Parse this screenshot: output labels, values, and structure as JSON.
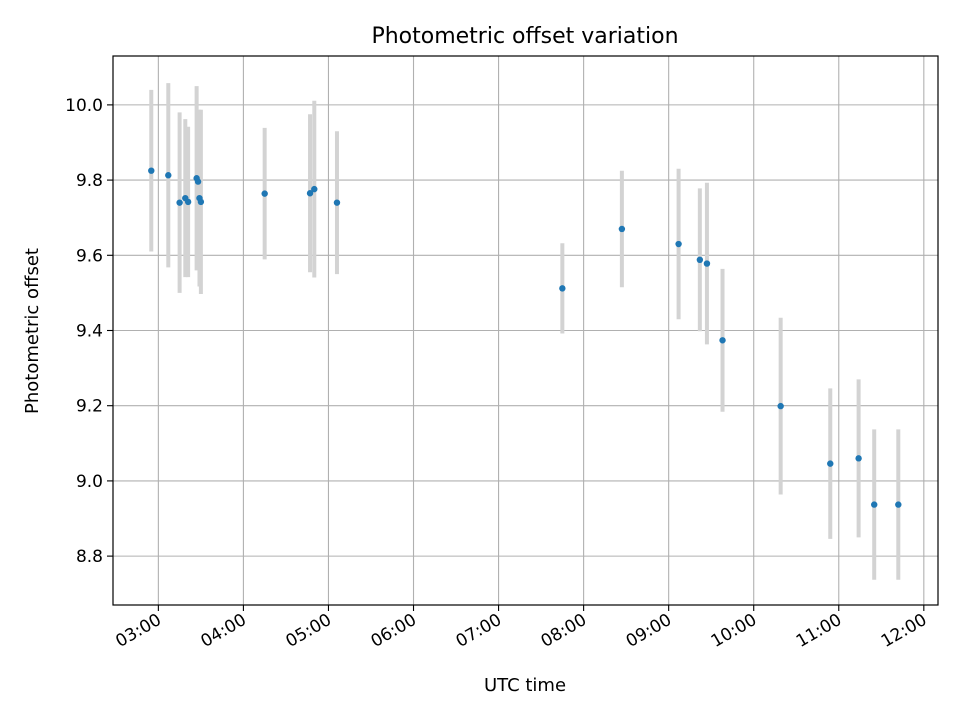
{
  "chart_data": {
    "type": "scatter",
    "title": "Photometric offset variation",
    "xlabel": "UTC time",
    "ylabel": "Photometric offset",
    "x_unit": "hours UTC",
    "xlim": [
      "02:28",
      "12:10"
    ],
    "ylim": [
      8.67,
      10.13
    ],
    "x_ticks": [
      "03:00",
      "04:00",
      "05:00",
      "06:00",
      "07:00",
      "08:00",
      "09:00",
      "10:00",
      "11:00",
      "12:00"
    ],
    "y_ticks": [
      "8.8",
      "9.0",
      "9.2",
      "9.4",
      "9.6",
      "9.8",
      "10.0"
    ],
    "grid": true,
    "marker_color": "#1f77b4",
    "errorbar_color": "#d3d3d3",
    "points": [
      {
        "x": "02:55",
        "y": 9.825,
        "err": 0.215
      },
      {
        "x": "03:07",
        "y": 9.813,
        "err": 0.245
      },
      {
        "x": "03:15",
        "y": 9.74,
        "err": 0.24
      },
      {
        "x": "03:19",
        "y": 9.752,
        "err": 0.21
      },
      {
        "x": "03:21",
        "y": 9.742,
        "err": 0.2
      },
      {
        "x": "03:27",
        "y": 9.805,
        "err": 0.245
      },
      {
        "x": "03:28",
        "y": 9.796,
        "err": 0.19
      },
      {
        "x": "03:29",
        "y": 9.752,
        "err": 0.235
      },
      {
        "x": "03:30",
        "y": 9.742,
        "err": 0.245
      },
      {
        "x": "04:15",
        "y": 9.764,
        "err": 0.175
      },
      {
        "x": "04:47",
        "y": 9.765,
        "err": 0.21
      },
      {
        "x": "04:50",
        "y": 9.776,
        "err": 0.235
      },
      {
        "x": "05:06",
        "y": 9.74,
        "err": 0.19
      },
      {
        "x": "07:45",
        "y": 9.512,
        "err": 0.12
      },
      {
        "x": "08:27",
        "y": 9.67,
        "err": 0.155
      },
      {
        "x": "09:07",
        "y": 9.63,
        "err": 0.2
      },
      {
        "x": "09:22",
        "y": 9.588,
        "err": 0.19
      },
      {
        "x": "09:27",
        "y": 9.578,
        "err": 0.215
      },
      {
        "x": "09:38",
        "y": 9.374,
        "err": 0.19
      },
      {
        "x": "10:19",
        "y": 9.199,
        "err": 0.235
      },
      {
        "x": "10:54",
        "y": 9.046,
        "err": 0.2
      },
      {
        "x": "11:14",
        "y": 9.06,
        "err": 0.21
      },
      {
        "x": "11:25",
        "y": 8.937,
        "err": 0.2
      },
      {
        "x": "11:42",
        "y": 8.937,
        "err": 0.2
      }
    ]
  }
}
